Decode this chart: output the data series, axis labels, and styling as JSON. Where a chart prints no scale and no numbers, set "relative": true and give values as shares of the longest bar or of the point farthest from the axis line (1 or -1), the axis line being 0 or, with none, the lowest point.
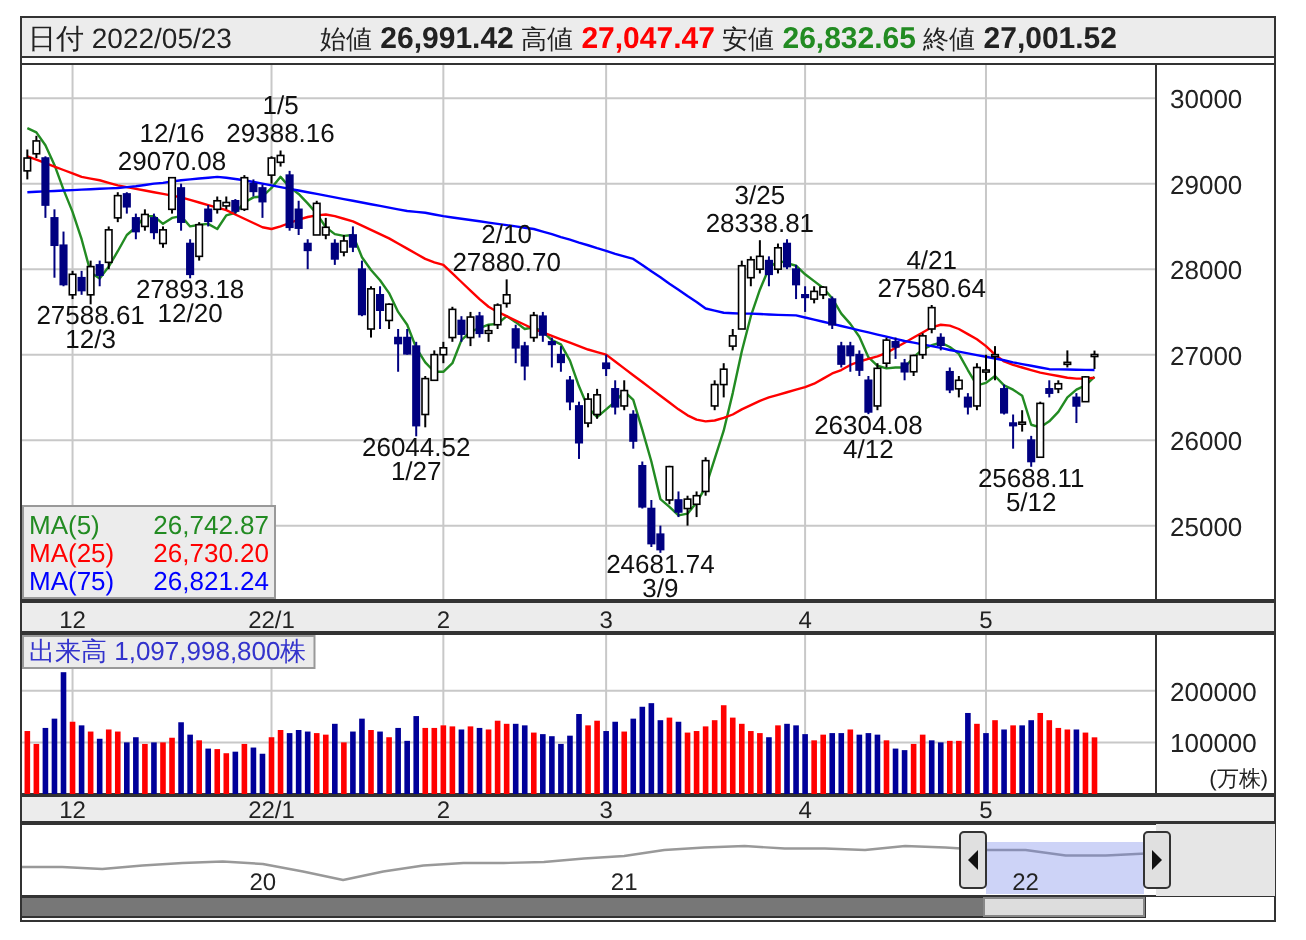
{
  "chart_data": [
    {
      "type": "candlestick",
      "title": "日付 2022/05/23",
      "subtitle": "始値 26,991.42 高値 27,047.47 安値 26,832.65 終値 27,001.52",
      "categories": [
        null,
        null,
        null,
        null,
        null,
        "12",
        null,
        null,
        null,
        null,
        null,
        null,
        null,
        null,
        null,
        null,
        null,
        null,
        null,
        null,
        null,
        null,
        null,
        null,
        null,
        null,
        null,
        "22/1",
        null,
        null,
        null,
        null,
        null,
        null,
        null,
        null,
        null,
        null,
        null,
        null,
        null,
        null,
        null,
        null,
        null,
        null,
        "2",
        null,
        null,
        null,
        null,
        null,
        null,
        null,
        null,
        null,
        null,
        null,
        null,
        null,
        null,
        null,
        null,
        null,
        "3",
        null,
        null,
        null,
        null,
        null,
        null,
        null,
        null,
        null,
        null,
        null,
        null,
        null,
        null,
        null,
        null,
        null,
        null,
        null,
        null,
        null,
        "4",
        null,
        null,
        null,
        null,
        null,
        null,
        null,
        null,
        null,
        null,
        null,
        null,
        null,
        null,
        null,
        null,
        null,
        null,
        null,
        "5",
        null,
        null,
        null,
        null,
        null,
        null,
        null,
        null,
        null,
        null,
        null,
        null
      ],
      "ohlc": [
        [
          29150,
          29400,
          29050,
          29300
        ],
        [
          29350,
          29560,
          29300,
          29500
        ],
        [
          29300,
          29320,
          28600,
          28750
        ],
        [
          28600,
          28700,
          27900,
          28280
        ],
        [
          28280,
          28440,
          27800,
          27820
        ],
        [
          27700,
          27980,
          27650,
          27940
        ],
        [
          27900,
          27980,
          27700,
          27750
        ],
        [
          27700,
          28100,
          27588.61,
          28030
        ],
        [
          28050,
          28100,
          27800,
          27930
        ],
        [
          28080,
          28500,
          28000,
          28460
        ],
        [
          28600,
          28900,
          28550,
          28860
        ],
        [
          28880,
          28900,
          28650,
          28730
        ],
        [
          28600,
          28650,
          28350,
          28440
        ],
        [
          28500,
          28700,
          28450,
          28640
        ],
        [
          28600,
          28650,
          28350,
          28430
        ],
        [
          28300,
          28500,
          28250,
          28460
        ],
        [
          28700,
          29070.08,
          28650,
          29070
        ],
        [
          28950,
          29000,
          28450,
          28550
        ],
        [
          28300,
          28350,
          27893.18,
          27940
        ],
        [
          28150,
          28550,
          28100,
          28520
        ],
        [
          28700,
          28750,
          28500,
          28560
        ],
        [
          28700,
          28850,
          28650,
          28800
        ],
        [
          28740,
          28850,
          28700,
          28780
        ],
        [
          28800,
          28820,
          28650,
          28680
        ],
        [
          28700,
          29100,
          28680,
          29070
        ],
        [
          29000,
          29050,
          28850,
          28910
        ],
        [
          28950,
          28990,
          28600,
          28790
        ],
        [
          29100,
          29320,
          29000,
          29300
        ],
        [
          29250,
          29388.16,
          29200,
          29330
        ],
        [
          29100,
          29150,
          28450,
          28490
        ],
        [
          28700,
          28800,
          28400,
          28480
        ],
        [
          28300,
          28350,
          28000,
          28220
        ],
        [
          28400,
          28800,
          28400,
          28770
        ],
        [
          28400,
          28600,
          28350,
          28490
        ],
        [
          28300,
          28350,
          28050,
          28120
        ],
        [
          28200,
          28400,
          28150,
          28330
        ],
        [
          28400,
          28500,
          28200,
          28260
        ],
        [
          28000,
          28100,
          27450,
          27470
        ],
        [
          27300,
          27800,
          27200,
          27770
        ],
        [
          27700,
          27800,
          27300,
          27520
        ],
        [
          27400,
          27600,
          27300,
          27590
        ],
        [
          27200,
          27300,
          26800,
          27130
        ],
        [
          27200,
          27300,
          27000,
          27010
        ],
        [
          27100,
          27150,
          26044.52,
          26170
        ],
        [
          26300,
          26750,
          26150,
          26720
        ],
        [
          26700,
          27050,
          26700,
          27000
        ],
        [
          27000,
          27150,
          26900,
          27080
        ],
        [
          27200,
          27560,
          27150,
          27530
        ],
        [
          27400,
          27450,
          27150,
          27240
        ],
        [
          27200,
          27500,
          27100,
          27440
        ],
        [
          27450,
          27500,
          27200,
          27250
        ],
        [
          27250,
          27350,
          27150,
          27280
        ],
        [
          27350,
          27600,
          27300,
          27580
        ],
        [
          27600,
          27880.7,
          27550,
          27700
        ],
        [
          27300,
          27350,
          26900,
          27080
        ],
        [
          27100,
          27150,
          26700,
          26870
        ],
        [
          27200,
          27500,
          27150,
          27460
        ],
        [
          27450,
          27500,
          27150,
          27230
        ],
        [
          27150,
          27200,
          26850,
          27120
        ],
        [
          27000,
          27100,
          26800,
          26910
        ],
        [
          26700,
          26750,
          26350,
          26450
        ],
        [
          26400,
          26450,
          25780,
          25970
        ],
        [
          26200,
          26550,
          26150,
          26480
        ],
        [
          26300,
          26600,
          26250,
          26530
        ],
        [
          26900,
          27000,
          26750,
          26840
        ],
        [
          26600,
          26700,
          26300,
          26390
        ],
        [
          26400,
          26700,
          26350,
          26580
        ],
        [
          26300,
          26350,
          25900,
          25990
        ],
        [
          25700,
          25750,
          25200,
          25220
        ],
        [
          25200,
          25300,
          24750,
          24790
        ],
        [
          24900,
          25000,
          24681.74,
          24720
        ],
        [
          25300,
          25700,
          25250,
          25690
        ],
        [
          25300,
          25400,
          25100,
          25160
        ],
        [
          25200,
          25350,
          25000,
          25310
        ],
        [
          25250,
          25400,
          25100,
          25350
        ],
        [
          25400,
          25800,
          25350,
          25760
        ],
        [
          26400,
          26700,
          26350,
          26650
        ],
        [
          26650,
          26900,
          26500,
          26830
        ],
        [
          27100,
          27300,
          27050,
          27220
        ],
        [
          27300,
          28100,
          27300,
          28040
        ],
        [
          27900,
          28150,
          27800,
          28110
        ],
        [
          28000,
          28338.81,
          27950,
          28150
        ],
        [
          28100,
          28150,
          27800,
          27940
        ],
        [
          28000,
          28300,
          27950,
          28250
        ],
        [
          28300,
          28350,
          28000,
          28030
        ],
        [
          28000,
          28050,
          27650,
          27820
        ],
        [
          27700,
          27800,
          27500,
          27670
        ],
        [
          27650,
          27800,
          27600,
          27740
        ],
        [
          27700,
          27800,
          27650,
          27790
        ],
        [
          27650,
          27680,
          27300,
          27350
        ],
        [
          27100,
          27150,
          26850,
          26890
        ],
        [
          27100,
          27150,
          26800,
          26990
        ],
        [
          27000,
          27050,
          26750,
          26820
        ],
        [
          26700,
          26750,
          26304.08,
          26330
        ],
        [
          26400,
          26900,
          26350,
          26840
        ],
        [
          26900,
          27200,
          26850,
          27170
        ],
        [
          27150,
          27200,
          26950,
          27090
        ],
        [
          26900,
          26950,
          26700,
          26800
        ],
        [
          26800,
          27000,
          26750,
          26990
        ],
        [
          27000,
          27250,
          26950,
          27220
        ],
        [
          27300,
          27580.64,
          27250,
          27550
        ],
        [
          27200,
          27250,
          27050,
          27110
        ],
        [
          26800,
          26850,
          26550,
          26590
        ],
        [
          26600,
          26750,
          26500,
          26700
        ],
        [
          26500,
          26550,
          26300,
          26390
        ],
        [
          26400,
          26900,
          26350,
          26850
        ],
        [
          26800,
          27000,
          26700,
          26820
        ],
        [
          27000,
          27100,
          26700,
          27000
        ],
        [
          26600,
          26650,
          26300,
          26320
        ],
        [
          26200,
          26300,
          25900,
          26170
        ],
        [
          26200,
          26350,
          26100,
          26210
        ],
        [
          26000,
          26050,
          25688.11,
          25750
        ],
        [
          25800,
          26450,
          25800,
          26430
        ],
        [
          26600,
          26700,
          26500,
          26550
        ],
        [
          26600,
          26700,
          26550,
          26660
        ],
        [
          26900,
          27050,
          26850,
          26910
        ],
        [
          26500,
          26550,
          26200,
          26400
        ],
        [
          26450,
          26750,
          26450,
          26740
        ],
        [
          26991.42,
          27047.47,
          26832.65,
          27001.52
        ]
      ],
      "series": [
        {
          "name": "MA(5)",
          "type": "line",
          "color": "#228b22",
          "values": [
            29650,
            29600,
            29450,
            29220,
            28930,
            28670,
            28350,
            27960,
            27890,
            28030,
            28210,
            28400,
            28490,
            28620,
            28620,
            28530,
            28600,
            28620,
            28500,
            28520,
            28530,
            28470,
            28630,
            28660,
            28780,
            28840,
            28850,
            28950,
            29080,
            28960,
            28880,
            28770,
            28650,
            28490,
            28410,
            28390,
            28400,
            28140,
            27990,
            27870,
            27720,
            27500,
            27350,
            27080,
            26910,
            26800,
            26800,
            26900,
            27170,
            27270,
            27310,
            27350,
            27360,
            27450,
            27380,
            27300,
            27320,
            27270,
            27170,
            27120,
            26930,
            26630,
            26380,
            26270,
            26360,
            26450,
            26570,
            26470,
            26120,
            25750,
            25310,
            25220,
            25120,
            25140,
            25270,
            25450,
            25780,
            26110,
            26550,
            27040,
            27450,
            27760,
            28010,
            28100,
            28070,
            28040,
            27940,
            27860,
            27780,
            27660,
            27480,
            27360,
            27210,
            26970,
            26870,
            26840,
            26850,
            26850,
            26970,
            27060,
            27110,
            27140,
            27090,
            27010,
            26820,
            26640,
            26670,
            26750,
            26640,
            26590,
            26520,
            26180,
            26150,
            26220,
            26330,
            26500,
            26590,
            26640,
            26740
          ]
        },
        {
          "name": "MA(25)",
          "type": "line",
          "color": "#ff0000",
          "values": [
            29320,
            29280,
            29240,
            29200,
            29160,
            29120,
            29080,
            29060,
            29040,
            29010,
            28980,
            28960,
            28940,
            28920,
            28900,
            28880,
            28860,
            28840,
            28810,
            28780,
            28750,
            28720,
            28690,
            28640,
            28590,
            28540,
            28490,
            28470,
            28500,
            28540,
            28580,
            28610,
            28630,
            28640,
            28620,
            28590,
            28560,
            28510,
            28460,
            28410,
            28360,
            28300,
            28240,
            28180,
            28120,
            28080,
            28050,
            27950,
            27850,
            27750,
            27650,
            27560,
            27500,
            27450,
            27400,
            27350,
            27300,
            27260,
            27220,
            27180,
            27140,
            27100,
            27060,
            27030,
            27000,
            26920,
            26840,
            26760,
            26680,
            26600,
            26520,
            26440,
            26360,
            26290,
            26240,
            26220,
            26230,
            26260,
            26300,
            26360,
            26410,
            26460,
            26500,
            26530,
            26560,
            26590,
            26620,
            26660,
            26720,
            26780,
            26820,
            26880,
            26920,
            26950,
            26980,
            27020,
            27080,
            27140,
            27200,
            27260,
            27320,
            27350,
            27340,
            27300,
            27240,
            27180,
            27100,
            27000,
            26920,
            26880,
            26850,
            26820,
            26790,
            26770,
            26750,
            26730,
            26720,
            26720,
            26730
          ]
        },
        {
          "name": "MA(75)",
          "type": "line",
          "color": "#0000ff",
          "values": [
            28900,
            28905,
            28910,
            28915,
            28920,
            28925,
            28930,
            28935,
            28940,
            28945,
            28950,
            28960,
            28970,
            28985,
            29000,
            29010,
            29025,
            29040,
            29050,
            29060,
            29070,
            29080,
            29070,
            29055,
            29040,
            29020,
            29000,
            28980,
            28960,
            28940,
            28920,
            28900,
            28880,
            28860,
            28840,
            28820,
            28800,
            28780,
            28760,
            28740,
            28720,
            28700,
            28680,
            28670,
            28660,
            28640,
            28620,
            28605,
            28590,
            28575,
            28560,
            28545,
            28530,
            28515,
            28500,
            28485,
            28470,
            28440,
            28410,
            28375,
            28345,
            28310,
            28280,
            28245,
            28215,
            28180,
            28150,
            28120,
            28050,
            27975,
            27905,
            27830,
            27760,
            27685,
            27615,
            27540,
            27515,
            27490,
            27485,
            27480,
            27480,
            27475,
            27470,
            27465,
            27462,
            27460,
            27435,
            27410,
            27385,
            27360,
            27335,
            27310,
            27285,
            27260,
            27235,
            27210,
            27185,
            27160,
            27140,
            27120,
            27100,
            27080,
            27055,
            27035,
            27015,
            26995,
            26975,
            26955,
            26935,
            26910,
            26890,
            26870,
            26850,
            26830,
            26828,
            26826,
            26824,
            26822,
            26821
          ]
        }
      ],
      "ylim": [
        24130,
        30400
      ],
      "yticks": [
        25000,
        26000,
        27000,
        28000,
        29000,
        30000
      ],
      "grid": true,
      "legend": "bottom left",
      "annotations": [
        "26,742.87",
        "26,730.20",
        "26,821.24",
        {
          "text": "27588.61\n12/3",
          "y": 27588.61
        },
        {
          "text": "12/16\n29070.08",
          "y": 29070.08
        },
        {
          "text": "27893.18\n12/20",
          "y": 27893.18
        },
        {
          "text": "1/5\n29388.16",
          "y": 29388.16
        },
        {
          "text": "26044.52\n1/27",
          "y": 26044.52
        },
        {
          "text": "2/10\n27880.70",
          "y": 27880.7
        },
        {
          "text": "24681.74\n3/9",
          "y": 24681.74
        },
        {
          "text": "3/25\n28338.81",
          "y": 28338.81
        },
        {
          "text": "26304.08\n4/12",
          "y": 26304.08
        },
        {
          "text": "4/21\n27580.64",
          "y": 27580.64
        },
        {
          "text": "25688.11\n5/12",
          "y": 25688.11
        }
      ]
    },
    {
      "type": "bar",
      "title": "出来高 1,097,998,800株",
      "ylabel": "(万株)",
      "categories": [
        null,
        null,
        null,
        null,
        null,
        "12",
        null,
        null,
        null,
        null,
        null,
        null,
        null,
        null,
        null,
        null,
        null,
        null,
        null,
        null,
        null,
        null,
        null,
        null,
        null,
        null,
        null,
        "22/1",
        null,
        null,
        null,
        null,
        null,
        null,
        null,
        null,
        null,
        null,
        null,
        null,
        null,
        null,
        null,
        null,
        null,
        null,
        "2",
        null,
        null,
        null,
        null,
        null,
        null,
        null,
        null,
        null,
        null,
        null,
        null,
        null,
        null,
        null,
        null,
        null,
        "3",
        null,
        null,
        null,
        null,
        null,
        null,
        null,
        null,
        null,
        null,
        null,
        null,
        null,
        null,
        null,
        null,
        null,
        null,
        null,
        null,
        null,
        "4",
        null,
        null,
        null,
        null,
        null,
        null,
        null,
        null,
        null,
        null,
        null,
        null,
        null,
        null,
        null,
        null,
        null,
        null,
        null,
        "5",
        null,
        null,
        null,
        null,
        null,
        null,
        null,
        null,
        null,
        null,
        null,
        null
      ],
      "values": [
        122000,
        97000,
        128000,
        146000,
        236000,
        140000,
        133000,
        121000,
        107000,
        125000,
        121000,
        100000,
        110000,
        97000,
        100000,
        100000,
        109000,
        139000,
        115000,
        104000,
        88000,
        87000,
        79000,
        82000,
        97000,
        90000,
        78000,
        110000,
        124000,
        118000,
        124000,
        121000,
        118000,
        115000,
        136000,
        100000,
        121000,
        146000,
        124000,
        121000,
        110000,
        128000,
        103000,
        151000,
        128000,
        128000,
        133000,
        131000,
        125000,
        131000,
        128000,
        125000,
        142000,
        136000,
        136000,
        133000,
        119000,
        116000,
        112000,
        97000,
        113000,
        155000,
        133000,
        142000,
        122000,
        140000,
        121000,
        146000,
        169000,
        176000,
        143000,
        148000,
        140000,
        119000,
        122000,
        131000,
        143000,
        172000,
        148000,
        136000,
        122000,
        118000,
        110000,
        133000,
        136000,
        133000,
        116000,
        104000,
        115000,
        118000,
        118000,
        125000,
        115000,
        118000,
        115000,
        104000,
        88000,
        85000,
        97000,
        115000,
        104000,
        100000,
        103000,
        103000,
        157000,
        136000,
        118000,
        143000,
        125000,
        133000,
        133000,
        143000,
        157000,
        143000,
        128000,
        125000,
        125000,
        119000,
        109800
      ],
      "colors": [
        "#ff0000",
        "#ff0000",
        "#000099",
        "#000099",
        "#000099",
        "#ff0000",
        "#000099",
        "#ff0000",
        "#000099",
        "#ff0000",
        "#ff0000",
        "#000099",
        "#000099",
        "#ff0000",
        "#000099",
        "#ff0000",
        "#ff0000",
        "#000099",
        "#000099",
        "#ff0000",
        "#000099",
        "#ff0000",
        "#ff0000",
        "#000099",
        "#ff0000",
        "#000099",
        "#000099",
        "#ff0000",
        "#ff0000",
        "#000099",
        "#000099",
        "#000099",
        "#ff0000",
        "#ff0000",
        "#000099",
        "#ff0000",
        "#000099",
        "#000099",
        "#ff0000",
        "#000099",
        "#ff0000",
        "#000099",
        "#000099",
        "#000099",
        "#ff0000",
        "#ff0000",
        "#ff0000",
        "#ff0000",
        "#000099",
        "#ff0000",
        "#000099",
        "#ff0000",
        "#ff0000",
        "#ff0000",
        "#000099",
        "#000099",
        "#ff0000",
        "#000099",
        "#000099",
        "#000099",
        "#000099",
        "#000099",
        "#ff0000",
        "#ff0000",
        "#000099",
        "#000099",
        "#ff0000",
        "#000099",
        "#000099",
        "#000099",
        "#000099",
        "#ff0000",
        "#000099",
        "#ff0000",
        "#ff0000",
        "#ff0000",
        "#ff0000",
        "#ff0000",
        "#ff0000",
        "#ff0000",
        "#ff0000",
        "#ff0000",
        "#000099",
        "#ff0000",
        "#000099",
        "#000099",
        "#000099",
        "#ff0000",
        "#ff0000",
        "#000099",
        "#000099",
        "#ff0000",
        "#000099",
        "#000099",
        "#000099",
        "#ff0000",
        "#000099",
        "#000099",
        "#ff0000",
        "#ff0000",
        "#000099",
        "#000099",
        "#ff0000",
        "#ff0000",
        "#000099",
        "#ff0000",
        "#000099",
        "#ff0000",
        "#000099",
        "#ff0000",
        "#000099",
        "#000099",
        "#ff0000",
        "#ff0000",
        "#ff0000",
        "#ff0000",
        "#000099",
        "#ff0000",
        "#ff0000"
      ],
      "ylim": [
        0,
        310000
      ],
      "yticks": [
        100000,
        200000
      ],
      "grid": true
    },
    {
      "type": "line",
      "relative": true,
      "categories": [
        null,
        null,
        null,
        null,
        null,
        null,
        "20",
        null,
        null,
        null,
        null,
        null,
        null,
        null,
        null,
        "21",
        null,
        null,
        null,
        null,
        null,
        null,
        null,
        null,
        null,
        "22",
        null,
        null,
        null
      ],
      "series": [
        {
          "color": "#999999",
          "values": [
            0.58,
            0.58,
            0.54,
            0.61,
            0.66,
            0.69,
            0.64,
            0.49,
            0.32,
            0.49,
            0.61,
            0.66,
            0.66,
            0.68,
            0.75,
            0.8,
            0.92,
            0.97,
            1,
            0.95,
            0.95,
            0.92,
            1,
            0.97,
            0.92,
            0.92,
            0.81,
            0.81,
            0.85
          ]
        }
      ]
    }
  ]
}
